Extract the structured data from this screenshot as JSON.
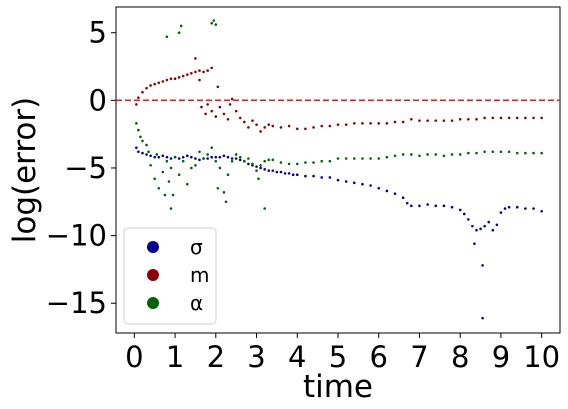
{
  "chart_data": {
    "type": "scatter",
    "title": "",
    "xlabel": "time",
    "ylabel": "log(error)",
    "xlim": [
      -0.45,
      10.45
    ],
    "ylim": [
      -17.2,
      6.9
    ],
    "x_ticks": [
      0,
      1,
      2,
      3,
      4,
      5,
      6,
      7,
      8,
      9,
      10
    ],
    "x_tick_labels": [
      "0",
      "1",
      "2",
      "3",
      "4",
      "5",
      "6",
      "7",
      "8",
      "9",
      "10"
    ],
    "y_ticks": [
      5,
      0,
      -5,
      -10,
      -15
    ],
    "y_tick_labels": [
      "5",
      "0",
      "−5",
      "−10",
      "−15"
    ],
    "reference_line": {
      "y": 0,
      "color": "#d62728",
      "style": "dashed"
    },
    "grid": false,
    "legend": {
      "position": "lower-left"
    },
    "series": [
      {
        "name": "σ",
        "color": "#00008b",
        "points": [
          [
            0.05,
            -3.5
          ],
          [
            0.1,
            -3.8
          ],
          [
            0.2,
            -3.9
          ],
          [
            0.3,
            -4.0
          ],
          [
            0.4,
            -4.1
          ],
          [
            0.5,
            -4.2
          ],
          [
            0.6,
            -4.2
          ],
          [
            0.7,
            -4.1
          ],
          [
            0.8,
            -4.2
          ],
          [
            0.9,
            -4.3
          ],
          [
            1.0,
            -4.2
          ],
          [
            1.1,
            -4.3
          ],
          [
            1.2,
            -4.2
          ],
          [
            1.3,
            -4.1
          ],
          [
            1.4,
            -4.2
          ],
          [
            1.5,
            -4.3
          ],
          [
            1.6,
            -4.4
          ],
          [
            1.7,
            -4.3
          ],
          [
            1.8,
            -4.3
          ],
          [
            1.9,
            -4.2
          ],
          [
            2.0,
            -4.2
          ],
          [
            2.1,
            -4.2
          ],
          [
            2.2,
            -4.1
          ],
          [
            2.3,
            -4.2
          ],
          [
            2.4,
            -4.3
          ],
          [
            2.5,
            -4.3
          ],
          [
            2.6,
            -4.4
          ],
          [
            2.7,
            -4.5
          ],
          [
            2.8,
            -4.7
          ],
          [
            2.9,
            -4.8
          ],
          [
            3.0,
            -4.9
          ],
          [
            3.1,
            -5.0
          ],
          [
            3.2,
            -5.1
          ],
          [
            3.3,
            -5.2
          ],
          [
            3.4,
            -5.2
          ],
          [
            3.5,
            -5.3
          ],
          [
            3.6,
            -5.3
          ],
          [
            3.7,
            -5.4
          ],
          [
            3.8,
            -5.4
          ],
          [
            3.9,
            -5.5
          ],
          [
            4.0,
            -5.5
          ],
          [
            4.2,
            -5.6
          ],
          [
            4.4,
            -5.6
          ],
          [
            4.6,
            -5.7
          ],
          [
            4.8,
            -5.7
          ],
          [
            5.0,
            -5.9
          ],
          [
            5.2,
            -6.0
          ],
          [
            5.4,
            -6.1
          ],
          [
            5.6,
            -6.2
          ],
          [
            5.8,
            -6.3
          ],
          [
            6.0,
            -6.5
          ],
          [
            6.2,
            -6.7
          ],
          [
            6.4,
            -6.9
          ],
          [
            6.6,
            -7.2
          ],
          [
            6.7,
            -7.6
          ],
          [
            6.8,
            -7.8
          ],
          [
            7.0,
            -7.8
          ],
          [
            7.2,
            -7.7
          ],
          [
            7.4,
            -7.8
          ],
          [
            7.6,
            -7.8
          ],
          [
            7.8,
            -7.9
          ],
          [
            8.0,
            -8.1
          ],
          [
            8.1,
            -8.4
          ],
          [
            8.2,
            -8.8
          ],
          [
            8.3,
            -9.3
          ],
          [
            8.4,
            -9.6
          ],
          [
            8.5,
            -9.5
          ],
          [
            8.6,
            -9.3
          ],
          [
            8.7,
            -9.0
          ],
          [
            8.8,
            -9.6
          ],
          [
            8.9,
            -9.2
          ],
          [
            9.0,
            -8.3
          ],
          [
            9.1,
            -8.0
          ],
          [
            9.2,
            -7.9
          ],
          [
            9.4,
            -7.9
          ],
          [
            9.6,
            -8.0
          ],
          [
            9.8,
            -8.0
          ],
          [
            10.0,
            -8.2
          ],
          [
            8.55,
            -12.2
          ],
          [
            8.55,
            -16.1
          ],
          [
            8.35,
            -10.6
          ]
        ]
      },
      {
        "name": "m",
        "color": "#8b0000",
        "points": [
          [
            0.05,
            -0.3
          ],
          [
            0.1,
            0.2
          ],
          [
            0.2,
            0.6
          ],
          [
            0.3,
            0.9
          ],
          [
            0.4,
            1.1
          ],
          [
            0.5,
            1.2
          ],
          [
            0.6,
            1.3
          ],
          [
            0.7,
            1.4
          ],
          [
            0.8,
            1.5
          ],
          [
            0.9,
            1.6
          ],
          [
            1.0,
            1.6
          ],
          [
            1.1,
            1.7
          ],
          [
            1.2,
            1.8
          ],
          [
            1.3,
            1.9
          ],
          [
            1.4,
            2.0
          ],
          [
            1.5,
            2.1
          ],
          [
            1.6,
            2.2
          ],
          [
            1.7,
            2.1
          ],
          [
            1.8,
            2.2
          ],
          [
            1.9,
            2.4
          ],
          [
            1.5,
            3.1
          ],
          [
            1.6,
            1.5
          ],
          [
            1.65,
            -0.5
          ],
          [
            1.75,
            -1.0
          ],
          [
            1.8,
            -0.3
          ],
          [
            1.9,
            -0.8
          ],
          [
            2.0,
            -1.2
          ],
          [
            2.05,
            1.0
          ],
          [
            2.1,
            -0.5
          ],
          [
            2.2,
            -1.0
          ],
          [
            2.3,
            -1.4
          ],
          [
            2.35,
            -0.3
          ],
          [
            2.4,
            0.1
          ],
          [
            2.5,
            -0.8
          ],
          [
            2.6,
            -1.3
          ],
          [
            2.7,
            -1.6
          ],
          [
            2.8,
            -2.0
          ],
          [
            2.9,
            -1.5
          ],
          [
            3.0,
            -1.8
          ],
          [
            3.1,
            -2.3
          ],
          [
            3.2,
            -2.0
          ],
          [
            3.3,
            -1.8
          ],
          [
            3.4,
            -1.9
          ],
          [
            3.6,
            -2.0
          ],
          [
            3.8,
            -1.9
          ],
          [
            4.0,
            -2.1
          ],
          [
            4.2,
            -2.1
          ],
          [
            4.4,
            -2.0
          ],
          [
            4.6,
            -1.9
          ],
          [
            4.8,
            -1.9
          ],
          [
            5.0,
            -1.8
          ],
          [
            5.2,
            -1.8
          ],
          [
            5.4,
            -1.7
          ],
          [
            5.6,
            -1.7
          ],
          [
            5.8,
            -1.7
          ],
          [
            6.0,
            -1.7
          ],
          [
            6.2,
            -1.7
          ],
          [
            6.4,
            -1.6
          ],
          [
            6.6,
            -1.6
          ],
          [
            6.8,
            -1.4
          ],
          [
            7.0,
            -1.5
          ],
          [
            7.2,
            -1.5
          ],
          [
            7.4,
            -1.5
          ],
          [
            7.6,
            -1.5
          ],
          [
            7.8,
            -1.5
          ],
          [
            8.0,
            -1.4
          ],
          [
            8.2,
            -1.4
          ],
          [
            8.4,
            -1.4
          ],
          [
            8.6,
            -1.3
          ],
          [
            8.8,
            -1.3
          ],
          [
            9.0,
            -1.3
          ],
          [
            9.2,
            -1.3
          ],
          [
            9.4,
            -1.3
          ],
          [
            9.6,
            -1.3
          ],
          [
            9.8,
            -1.3
          ],
          [
            10.0,
            -1.3
          ]
        ]
      },
      {
        "name": "α",
        "color": "#006400",
        "points": [
          [
            0.05,
            -1.7
          ],
          [
            0.1,
            -2.2
          ],
          [
            0.15,
            -2.7
          ],
          [
            0.2,
            -3.0
          ],
          [
            0.3,
            -3.3
          ],
          [
            0.35,
            -3.8
          ],
          [
            0.4,
            -4.8
          ],
          [
            0.5,
            -5.8
          ],
          [
            0.55,
            -4.0
          ],
          [
            0.6,
            -6.5
          ],
          [
            0.7,
            -5.3
          ],
          [
            0.75,
            -7.0
          ],
          [
            0.8,
            -4.5
          ],
          [
            0.85,
            -6.0
          ],
          [
            0.9,
            -5.0
          ],
          [
            0.9,
            -8.0
          ],
          [
            0.95,
            -7.0
          ],
          [
            1.0,
            -4.2
          ],
          [
            1.1,
            -5.5
          ],
          [
            1.2,
            -4.5
          ],
          [
            1.3,
            -6.2
          ],
          [
            1.4,
            -5.0
          ],
          [
            1.5,
            -4.8
          ],
          [
            1.6,
            -3.8
          ],
          [
            1.7,
            -4.3
          ],
          [
            1.8,
            -4.0
          ],
          [
            1.9,
            -3.5
          ],
          [
            2.0,
            -4.5
          ],
          [
            2.05,
            -6.5
          ],
          [
            2.1,
            -5.0
          ],
          [
            2.2,
            -6.8
          ],
          [
            2.25,
            -7.5
          ],
          [
            2.3,
            -5.5
          ],
          [
            2.4,
            -4.5
          ],
          [
            2.5,
            -4.0
          ],
          [
            2.6,
            -4.2
          ],
          [
            2.7,
            -4.5
          ],
          [
            2.8,
            -4.3
          ],
          [
            2.9,
            -4.7
          ],
          [
            3.0,
            -5.2
          ],
          [
            3.05,
            -5.8
          ],
          [
            3.1,
            -4.8
          ],
          [
            3.2,
            -4.5
          ],
          [
            3.3,
            -4.4
          ],
          [
            3.4,
            -4.4
          ],
          [
            3.6,
            -4.6
          ],
          [
            3.8,
            -4.7
          ],
          [
            4.0,
            -4.7
          ],
          [
            4.2,
            -4.6
          ],
          [
            4.4,
            -4.6
          ],
          [
            4.6,
            -4.5
          ],
          [
            4.8,
            -4.5
          ],
          [
            5.0,
            -4.3
          ],
          [
            5.2,
            -4.3
          ],
          [
            5.4,
            -4.3
          ],
          [
            5.6,
            -4.3
          ],
          [
            5.8,
            -4.3
          ],
          [
            6.0,
            -4.3
          ],
          [
            6.2,
            -4.2
          ],
          [
            6.4,
            -4.1
          ],
          [
            6.6,
            -4.0
          ],
          [
            6.8,
            -4.0
          ],
          [
            7.0,
            -4.1
          ],
          [
            7.2,
            -4.0
          ],
          [
            7.4,
            -4.0
          ],
          [
            7.6,
            -4.1
          ],
          [
            7.8,
            -4.0
          ],
          [
            8.0,
            -4.0
          ],
          [
            8.2,
            -3.9
          ],
          [
            8.4,
            -3.9
          ],
          [
            8.6,
            -3.8
          ],
          [
            8.8,
            -3.8
          ],
          [
            9.0,
            -3.8
          ],
          [
            9.2,
            -3.8
          ],
          [
            9.4,
            -3.9
          ],
          [
            9.6,
            -3.9
          ],
          [
            9.8,
            -3.9
          ],
          [
            10.0,
            -3.9
          ],
          [
            0.8,
            4.7
          ],
          [
            1.1,
            5.0
          ],
          [
            1.15,
            5.5
          ],
          [
            1.9,
            5.7
          ],
          [
            1.95,
            5.9
          ],
          [
            2.0,
            5.6
          ],
          [
            3.2,
            -8.0
          ]
        ]
      }
    ]
  }
}
